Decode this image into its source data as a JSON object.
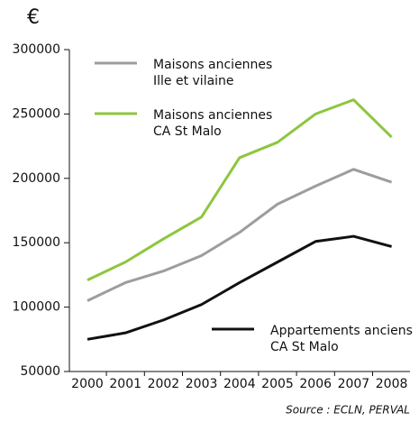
{
  "chart_data": {
    "type": "line",
    "y_label": "€",
    "categories": [
      "2000",
      "2001",
      "2002",
      "2003",
      "2004",
      "2005",
      "2006",
      "2007",
      "2008"
    ],
    "series": [
      {
        "name": "Maisons anciennes\nIlle et vilaine",
        "color": "#9d9d9d",
        "values": [
          105000,
          119000,
          128000,
          140000,
          158000,
          180000,
          194000,
          207000,
          197000
        ]
      },
      {
        "name": "Maisons anciennes\nCA St Malo",
        "color": "#8dc63f",
        "values": [
          121000,
          135000,
          153000,
          170000,
          216000,
          228000,
          250000,
          261000,
          232000
        ]
      },
      {
        "name": "Appartements anciens\nCA St Malo",
        "color": "#111111",
        "values": [
          75000,
          80000,
          90000,
          102000,
          119000,
          135000,
          151000,
          155000,
          147000
        ]
      }
    ],
    "ylim": [
      50000,
      300000
    ],
    "yticks": [
      50000,
      100000,
      150000,
      200000,
      250000,
      300000
    ],
    "source": "Source : ECLN, PERVAL"
  }
}
